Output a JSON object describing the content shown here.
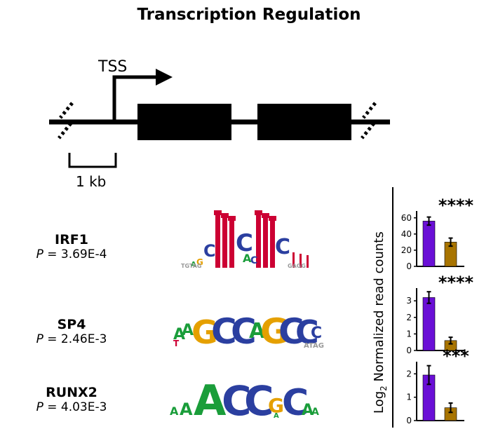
{
  "title": "Transcription Regulation",
  "gene_diagram": {
    "tss_label": "TSS",
    "scale_label": "1 kb"
  },
  "motifs": [
    {
      "name": "IRF1",
      "p_prefix": "P",
      "p_value": " = 3.69E-4"
    },
    {
      "name": "SP4",
      "p_prefix": "P",
      "p_value": " = 2.46E-3"
    },
    {
      "name": "RUNX2",
      "p_prefix": "P",
      "p_value": " = 4.03E-3"
    }
  ],
  "ylabel": {
    "prefix": "Log",
    "subscript": "2",
    "rest": " Normalized read counts"
  },
  "colors": {
    "group1": "#6a0fd6",
    "group2": "#a87400"
  },
  "chart_data": [
    {
      "type": "bar",
      "categories": [
        "",
        ""
      ],
      "values": [
        56,
        30
      ],
      "errors": [
        5,
        5
      ],
      "ylim": [
        0,
        65
      ],
      "yticks": [
        0,
        20,
        40,
        60
      ],
      "yticklabels": [
        "0",
        "20",
        "40",
        "60"
      ],
      "significance": "****"
    },
    {
      "type": "bar",
      "categories": [
        "",
        ""
      ],
      "values": [
        3.2,
        0.6
      ],
      "errors": [
        0.35,
        0.2
      ],
      "ylim": [
        0,
        3.6
      ],
      "yticks": [
        0,
        1,
        2,
        3
      ],
      "yticklabels": [
        "0",
        "1",
        "2",
        "3"
      ],
      "significance": "****"
    },
    {
      "type": "bar",
      "categories": [
        "",
        ""
      ],
      "values": [
        1.95,
        0.55
      ],
      "errors": [
        0.4,
        0.2
      ],
      "ylim": [
        0,
        2.4
      ],
      "yticks": [
        0,
        1,
        2
      ],
      "yticklabels": [
        "0",
        "1",
        "2"
      ],
      "significance": "***"
    }
  ]
}
